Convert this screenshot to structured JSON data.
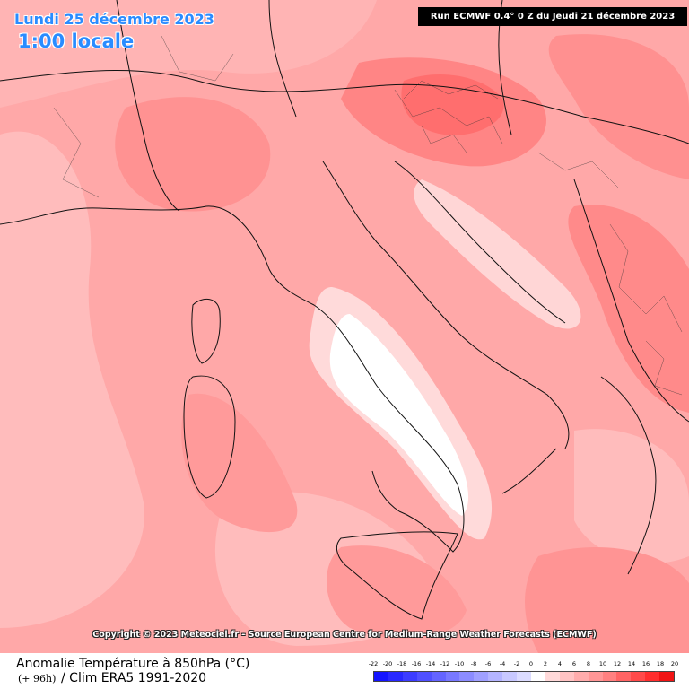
{
  "header": {
    "date": "Lundi 25 décembre 2023",
    "local_time": "1:00 locale",
    "run_info": "Run ECMWF 0.4° 0 Z du Jeudi 21 décembre 2023"
  },
  "copyright": "Copyright © 2023 Meteociel.fr - Source European Centre for Medium-Range Weather Forecasts (ECMWF)",
  "footer": {
    "variable_title": "Anomalie Température à 850hPa (°C)",
    "lead_time": "(+ 96h)",
    "climatology": "/ Clim ERA5 1991-2020"
  },
  "legend": {
    "tick_labels": [
      "-22",
      "-20",
      "-18",
      "-16",
      "-14",
      "-12",
      "-10",
      "-8",
      "-6",
      "-4",
      "-2",
      "0",
      "2",
      "4",
      "6",
      "8",
      "10",
      "12",
      "14",
      "16",
      "18",
      "20"
    ],
    "colors": [
      "#1414ff",
      "#2828ff",
      "#3c3cff",
      "#5050ff",
      "#6464ff",
      "#7878ff",
      "#8c8cff",
      "#a0a0ff",
      "#b4b4ff",
      "#c8c8ff",
      "#dcdcff",
      "#ffffff",
      "#ffd9d9",
      "#ffc3c3",
      "#ffacac",
      "#ff9696",
      "#ff8080",
      "#ff6464",
      "#ff4a4a",
      "#ff2e2e",
      "#f01414"
    ]
  },
  "map": {
    "background_color": "#ffa8a8",
    "regions": [
      "Alps / Slovenia warm anomaly",
      "Adriatic cool band",
      "Central-southern Italy near-zero anomaly",
      "Balkans warm anomaly"
    ]
  }
}
